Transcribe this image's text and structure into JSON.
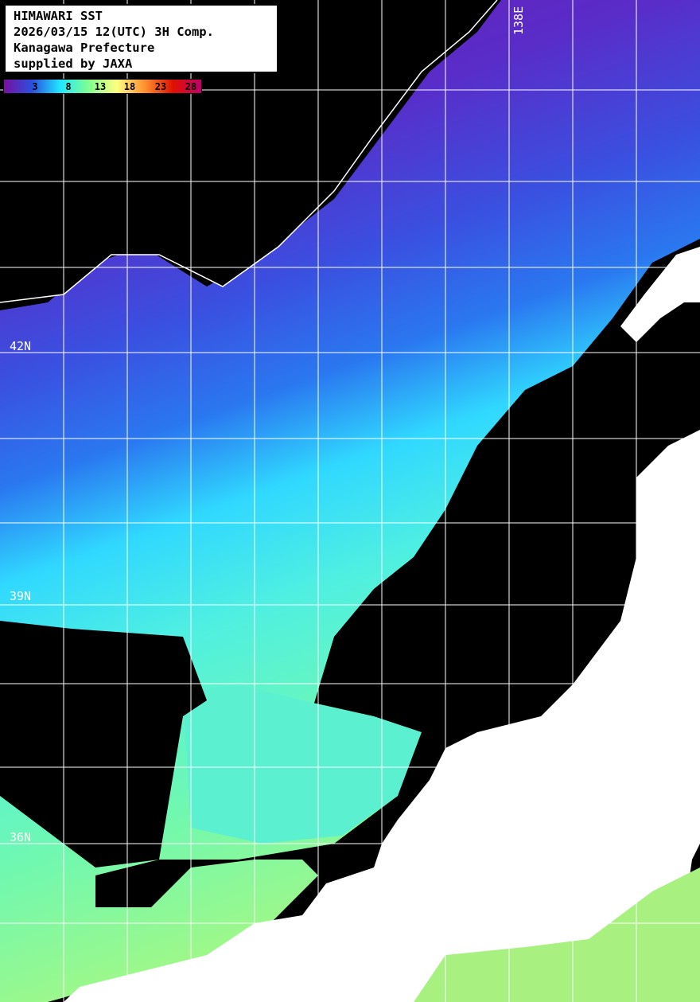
{
  "header": {
    "lines": [
      "HIMAWARI SST",
      "2026/03/15 12(UTC) 3H Comp.",
      "Kanagawa Prefecture",
      "supplied by JAXA"
    ]
  },
  "colorbar": {
    "ticks": [
      "3",
      "8",
      "13",
      "18",
      "23",
      "28"
    ],
    "colors": [
      "#7a0fa0",
      "#2a50e0",
      "#20e8ff",
      "#80ff90",
      "#ffff80",
      "#ff9030",
      "#e01000",
      "#c0006a"
    ]
  },
  "grid_labels": {
    "lon_138": "138E",
    "lat_42": "42N",
    "lat_39": "39N",
    "lat_36": "36N"
  },
  "colors": {
    "land": "#ffffff",
    "no_data": "#000000",
    "grid": "#ffffff"
  }
}
